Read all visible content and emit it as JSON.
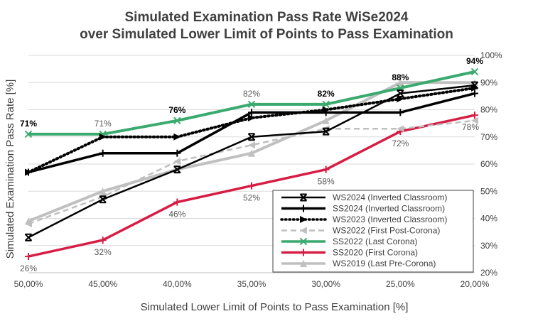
{
  "chart_data": {
    "type": "line",
    "title_line1": "Simulated Examination Pass Rate WiSe2024",
    "title_line2": "over Simulated Lower Limit of Points to Pass Examination",
    "xlabel": "Simulated Lower Limit of Points to Pass Examination [%]",
    "ylabel": "Simulated Examination Pass Rate [%]",
    "categories": [
      "50,00%",
      "45,00%",
      "40,00%",
      "35,00%",
      "30,00%",
      "25,00%",
      "20,00%"
    ],
    "y_axis_side": "right",
    "ylim": [
      20,
      100
    ],
    "y_ticks": [
      "20%",
      "30%",
      "40%",
      "50%",
      "60%",
      "70%",
      "80%",
      "90%",
      "100%"
    ],
    "y_tick_values": [
      20,
      30,
      40,
      50,
      60,
      70,
      80,
      90,
      100
    ],
    "grid": "horizontal",
    "legend_position": "bottom-right",
    "series": [
      {
        "name": "WS2024 (Inverted Classroom)",
        "values": [
          33,
          47,
          58,
          70,
          72,
          86,
          89
        ],
        "color": "#000000",
        "dash": "solid",
        "marker": "x-bar",
        "width": 2.5
      },
      {
        "name": "SS2024 (Inverted Classroom)",
        "values": [
          57,
          64,
          64,
          79,
          79,
          79,
          86
        ],
        "color": "#000000",
        "dash": "solid",
        "marker": "plus",
        "width": 3.5
      },
      {
        "name": "WS2023 (Inverted Classroom)",
        "values": [
          57,
          70,
          70,
          77,
          80,
          84,
          88
        ],
        "color": "#000000",
        "dash": "dotted",
        "marker": "triangle-right",
        "width": 4
      },
      {
        "name": "WS2022 (First Post-Corona)",
        "values": [
          38,
          48,
          61,
          67,
          73,
          73,
          76
        ],
        "color": "#bfbfbf",
        "dash": "dashed",
        "marker": "triangle-left",
        "width": 2.5
      },
      {
        "name": "SS2022 (Last Corona)",
        "values": [
          71,
          71,
          76,
          82,
          82,
          88,
          94
        ],
        "color": "#3aaa6e",
        "dash": "solid",
        "marker": "x",
        "width": 4
      },
      {
        "name": "SS2020 (First Corona)",
        "values": [
          26,
          32,
          46,
          52,
          58,
          72,
          78
        ],
        "color": "#d61d44",
        "dash": "solid",
        "marker": "plus",
        "width": 3.5
      },
      {
        "name": "WS2019 (Last Pre-Corona)",
        "values": [
          39,
          50,
          58,
          64,
          76,
          90,
          90
        ],
        "color": "#c0c0c0",
        "dash": "solid",
        "marker": "triangle-up",
        "width": 4
      }
    ],
    "annotations": [
      {
        "series": "SS2022 (Last Corona)",
        "labels": [
          "71%",
          "71%",
          "76%",
          "82%",
          "82%",
          "88%",
          "94%"
        ],
        "color": "#595959",
        "bold_indices": [
          0,
          2,
          4,
          5,
          6
        ]
      },
      {
        "series": "SS2020 (First Corona)",
        "labels": [
          "26%",
          "32%",
          "46%",
          "52%",
          "58%",
          "72%",
          "78%"
        ],
        "color": "#595959"
      }
    ]
  }
}
